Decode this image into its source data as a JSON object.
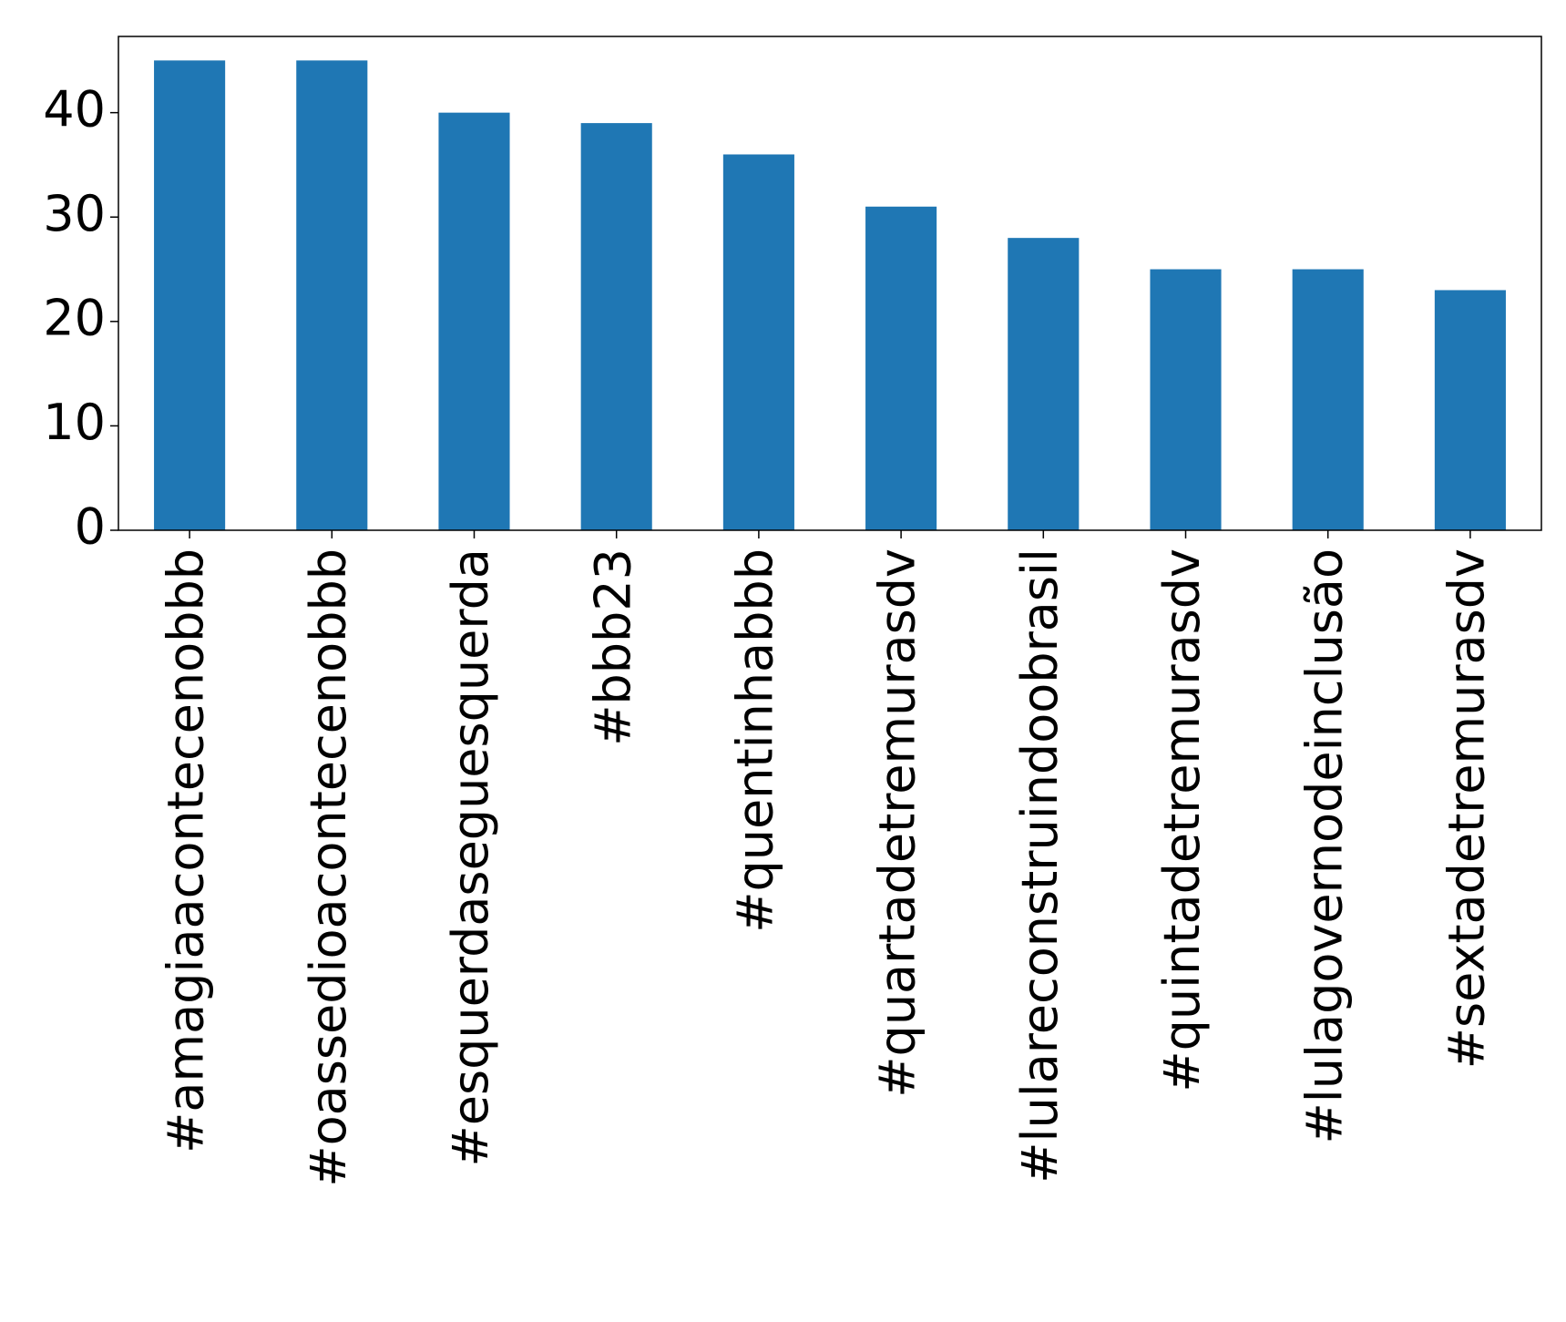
{
  "chart_data": {
    "type": "bar",
    "categories": [
      "#amagiaacontecenobbb",
      "#oassedioacontecenobbb",
      "#esquerdaseguesquerda",
      "#bbb23",
      "#quentinhabbb",
      "#quartadetremurasdv",
      "#lulareconstruindoobrasil",
      "#quintadetremurasdv",
      "#lulagovernodeinclusão",
      "#sextadetremurasdv"
    ],
    "values": [
      45,
      45,
      40,
      39,
      36,
      31,
      28,
      25,
      25,
      23
    ],
    "color": "#1f77b4",
    "ylim": [
      0,
      47.3
    ],
    "yticks": [
      0,
      10,
      20,
      30,
      40
    ],
    "grid": false
  }
}
